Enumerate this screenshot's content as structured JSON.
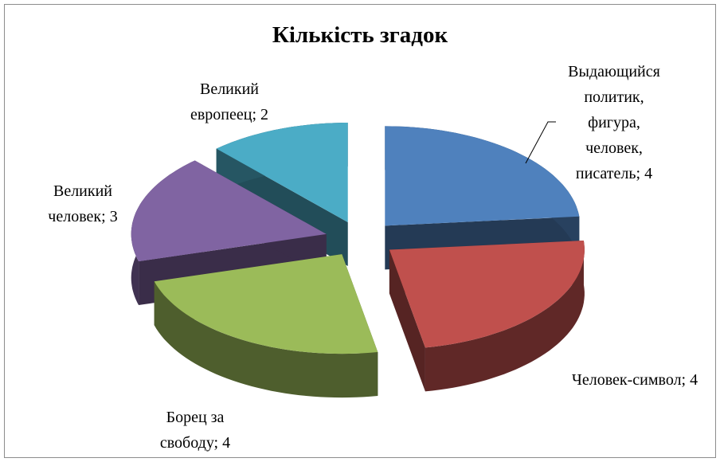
{
  "chart_data": {
    "type": "pie",
    "title": "Кількість згадок",
    "values": [
      4,
      4,
      4,
      3,
      2
    ],
    "value_labels": [
      "Выдающийся политик, фигура, человек, писатель; 4",
      "Человек-символ; 4",
      "Борец за свободу; 4",
      "Великий человек; 3",
      "Великий европеец; 2"
    ],
    "colors": [
      "#4f81bd",
      "#c0504d",
      "#9bbb59",
      "#8064a2",
      "#4bacc6"
    ]
  }
}
